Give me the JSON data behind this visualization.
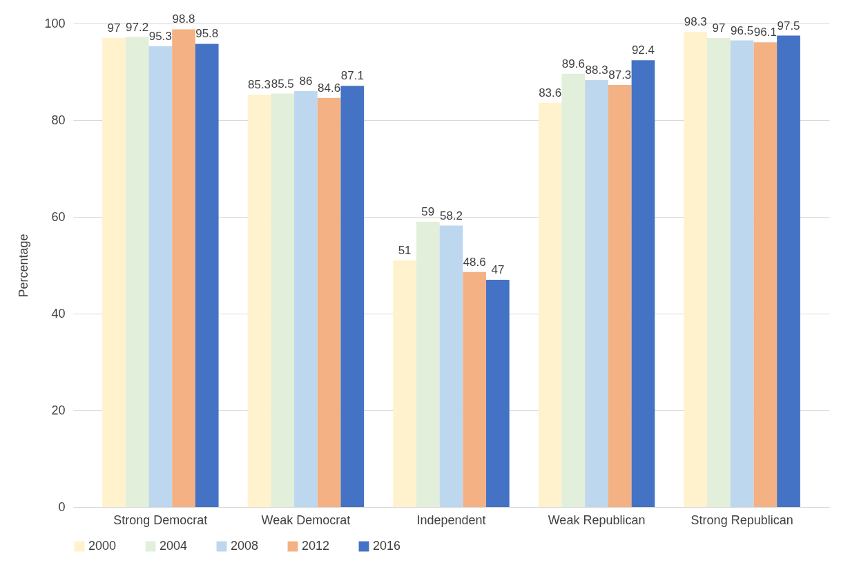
{
  "chart_data": {
    "type": "bar",
    "ylabel": "Percentage",
    "categories": [
      "Strong Democrat",
      "Weak Democrat",
      "Independent",
      "Weak Republican",
      "Strong Republican"
    ],
    "series": [
      {
        "name": "2000",
        "color": "#fff2cc",
        "values": [
          97,
          85.3,
          51,
          83.6,
          98.3
        ]
      },
      {
        "name": "2004",
        "color": "#e2efda",
        "values": [
          97.2,
          85.5,
          59,
          89.6,
          97
        ]
      },
      {
        "name": "2008",
        "color": "#bdd7ee",
        "values": [
          95.3,
          86,
          58.2,
          88.3,
          96.5
        ]
      },
      {
        "name": "2012",
        "color": "#f4b183",
        "values": [
          98.8,
          84.6,
          48.6,
          87.3,
          96.1
        ]
      },
      {
        "name": "2016",
        "color": "#4472c4",
        "values": [
          95.8,
          87.1,
          47,
          92.4,
          97.5
        ]
      }
    ],
    "ylim": [
      0,
      100
    ],
    "yticks": [
      0,
      20,
      40,
      60,
      80,
      100
    ],
    "grid": "y",
    "legend": "bottom",
    "data_labels": true
  }
}
